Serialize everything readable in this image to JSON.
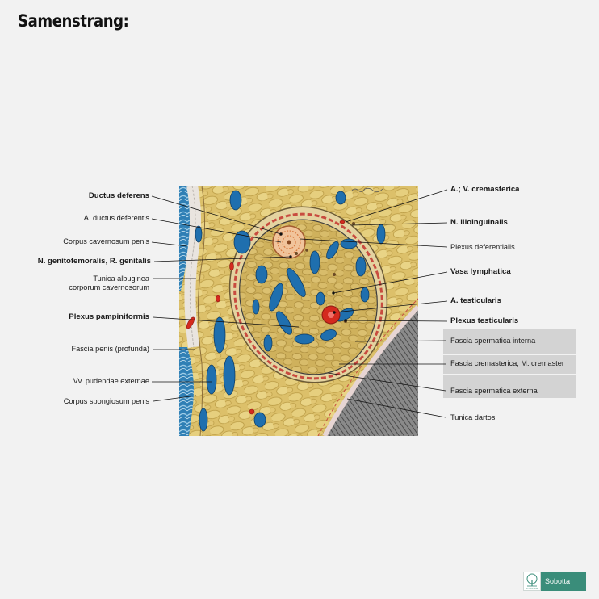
{
  "page": {
    "title": "Samenstrang:"
  },
  "labels_left": {
    "ductus_deferens": "Ductus deferens",
    "a_ductus_deferentis": "A. ductus deferentis",
    "corpus_cavernosum": "Corpus cavernosum penis",
    "n_genitofemoralis": "N. genitofemoralis, R. genitalis",
    "tunica_albuginea": "Tunica albuginea\ncorporum cavernosorum",
    "plexus_pampiniformis": "Plexus pampiniformis",
    "fascia_penis": "Fascia penis (profunda)",
    "vv_pudendae": "Vv. pudendae externae",
    "corpus_spongiosum": "Corpus spongiosum penis"
  },
  "labels_right": {
    "a_v_cremasterica": "A.; V. cremasterica",
    "n_ilioinguinalis": "N. ilioinguinalis",
    "plexus_deferentialis": "Plexus deferentialis",
    "vasa_lymphatica": "Vasa lymphatica",
    "a_testicularis": "A. testicularis",
    "plexus_testicularis": "Plexus testicularis",
    "fascia_spermatica_interna": "Fascia spermatica interna",
    "fascia_cremasterica": "Fascia cremasterica; M. cremaster",
    "fascia_spermatica_externa": "Fascia spermatica externa",
    "tunica_dartos": "Tunica dartos"
  },
  "logo": {
    "text": "Sobotta",
    "publisher": "ELSEVIER"
  },
  "colors": {
    "background": "#f2f2f2",
    "fat": "#dcc06a",
    "vein": "#1f6fae",
    "artery": "#d42a1e",
    "fascia_box": "#d3d3d3",
    "logo_green": "#3a8d7a"
  }
}
